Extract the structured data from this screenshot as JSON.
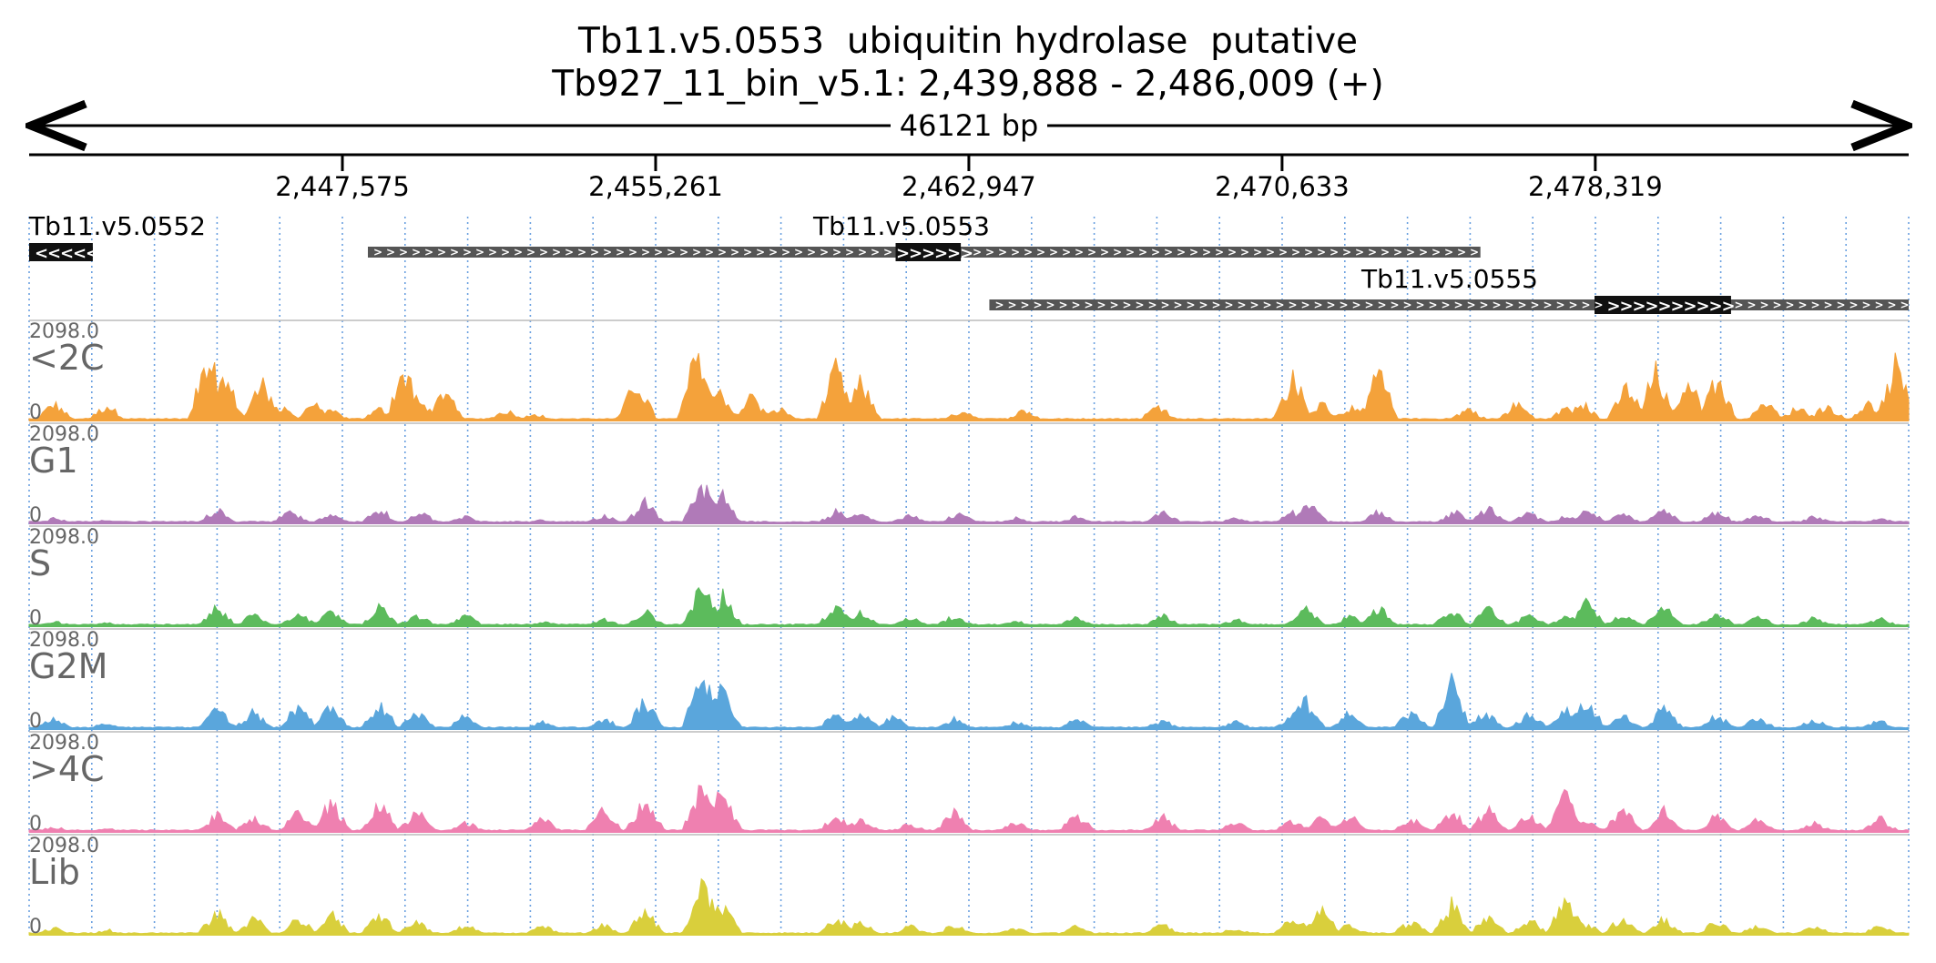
{
  "header": {
    "title_line1": "Tb11.v5.0553  ubiquitin hydrolase  putative",
    "title_line2": "Tb927_11_bin_v5.1: 2,439,888 - 2,486,009 (+)"
  },
  "chart_data": {
    "type": "area",
    "region": {
      "start": 2439888,
      "end": 2486009,
      "strand": "+"
    },
    "span_label": "46121 bp",
    "ticks": [
      2447575,
      2455261,
      2462947,
      2470633,
      2478319
    ],
    "tick_labels": [
      "2,447,575",
      "2,455,261",
      "2,462,947",
      "2,470,633",
      "2,478,319"
    ],
    "genes": [
      {
        "name": "Tb11.v5.0552",
        "strand": "-",
        "utr_start": 2439888,
        "utr_end": 2441450,
        "cds_start": 2439888,
        "cds_end": 2441450
      },
      {
        "name": "Tb11.v5.0553",
        "strand": "+",
        "utr_start": 2448200,
        "utr_end": 2475500,
        "cds_start": 2461150,
        "cds_end": 2462750
      },
      {
        "name": "Tb11.v5.0555",
        "strand": "+",
        "utr_start": 2463450,
        "utr_end": 2486009,
        "cds_start": 2478300,
        "cds_end": 2481650
      }
    ],
    "y_max_label": "2098.0",
    "y_min_label": "0",
    "ylim": [
      0,
      2098.0
    ],
    "tracks": [
      {
        "name": "<2C",
        "color": "#f4a23b",
        "peaks": [
          [
            2440500,
            500
          ],
          [
            2441800,
            450
          ],
          [
            2444300,
            2050
          ],
          [
            2444700,
            1200
          ],
          [
            2445600,
            1100
          ],
          [
            2446100,
            350
          ],
          [
            2446900,
            550
          ],
          [
            2447300,
            300
          ],
          [
            2448500,
            350
          ],
          [
            2449100,
            1400
          ],
          [
            2449500,
            500
          ],
          [
            2450100,
            950
          ],
          [
            2451600,
            300
          ],
          [
            2452300,
            200
          ],
          [
            2454800,
            1150
          ],
          [
            2456300,
            2050
          ],
          [
            2456800,
            1000
          ],
          [
            2457600,
            700
          ],
          [
            2458300,
            350
          ],
          [
            2459700,
            1500
          ],
          [
            2460300,
            1100
          ],
          [
            2462800,
            300
          ],
          [
            2464300,
            300
          ],
          [
            2467600,
            450
          ],
          [
            2470900,
            1300
          ],
          [
            2471600,
            500
          ],
          [
            2472300,
            400
          ],
          [
            2473000,
            1400
          ],
          [
            2475200,
            350
          ],
          [
            2476400,
            500
          ],
          [
            2477600,
            350
          ],
          [
            2478000,
            500
          ],
          [
            2479100,
            1000
          ],
          [
            2479800,
            1400
          ],
          [
            2480600,
            1150
          ],
          [
            2481300,
            1300
          ],
          [
            2482500,
            500
          ],
          [
            2483300,
            400
          ],
          [
            2484000,
            450
          ],
          [
            2485000,
            500
          ],
          [
            2485700,
            1600
          ]
        ]
      },
      {
        "name": "G1",
        "color": "#b07ab8",
        "peaks": [
          [
            2440500,
            150
          ],
          [
            2441800,
            100
          ],
          [
            2444500,
            400
          ],
          [
            2446300,
            350
          ],
          [
            2447300,
            250
          ],
          [
            2448500,
            400
          ],
          [
            2449500,
            300
          ],
          [
            2450600,
            200
          ],
          [
            2452500,
            100
          ],
          [
            2454000,
            250
          ],
          [
            2455000,
            600
          ],
          [
            2456400,
            1200
          ],
          [
            2456900,
            800
          ],
          [
            2459700,
            350
          ],
          [
            2460300,
            300
          ],
          [
            2461500,
            250
          ],
          [
            2462700,
            300
          ],
          [
            2464100,
            150
          ],
          [
            2465600,
            200
          ],
          [
            2467700,
            350
          ],
          [
            2469500,
            150
          ],
          [
            2470900,
            300
          ],
          [
            2471300,
            600
          ],
          [
            2473000,
            350
          ],
          [
            2474900,
            350
          ],
          [
            2475700,
            450
          ],
          [
            2476700,
            300
          ],
          [
            2477600,
            200
          ],
          [
            2478100,
            450
          ],
          [
            2479000,
            300
          ],
          [
            2480000,
            400
          ],
          [
            2481300,
            350
          ],
          [
            2482300,
            250
          ],
          [
            2483700,
            200
          ],
          [
            2485300,
            150
          ]
        ]
      },
      {
        "name": "S",
        "color": "#5cbb5c",
        "peaks": [
          [
            2440500,
            150
          ],
          [
            2441800,
            100
          ],
          [
            2444500,
            550
          ],
          [
            2445400,
            350
          ],
          [
            2446500,
            400
          ],
          [
            2447300,
            450
          ],
          [
            2448500,
            550
          ],
          [
            2449400,
            350
          ],
          [
            2450600,
            300
          ],
          [
            2452500,
            150
          ],
          [
            2454000,
            200
          ],
          [
            2455000,
            450
          ],
          [
            2456400,
            1200
          ],
          [
            2456900,
            900
          ],
          [
            2459700,
            600
          ],
          [
            2460300,
            450
          ],
          [
            2461500,
            250
          ],
          [
            2462600,
            300
          ],
          [
            2464100,
            150
          ],
          [
            2465600,
            250
          ],
          [
            2467700,
            300
          ],
          [
            2469500,
            200
          ],
          [
            2471200,
            550
          ],
          [
            2472300,
            300
          ],
          [
            2473000,
            550
          ],
          [
            2474800,
            450
          ],
          [
            2475700,
            500
          ],
          [
            2476700,
            350
          ],
          [
            2477600,
            250
          ],
          [
            2478100,
            700
          ],
          [
            2479000,
            400
          ],
          [
            2480000,
            600
          ],
          [
            2481300,
            450
          ],
          [
            2482300,
            300
          ],
          [
            2483700,
            250
          ],
          [
            2485300,
            250
          ]
        ]
      },
      {
        "name": "G2M",
        "color": "#5aa6dc",
        "peaks": [
          [
            2440500,
            300
          ],
          [
            2441800,
            200
          ],
          [
            2444500,
            600
          ],
          [
            2445400,
            500
          ],
          [
            2446500,
            700
          ],
          [
            2447300,
            650
          ],
          [
            2448500,
            700
          ],
          [
            2449400,
            500
          ],
          [
            2450600,
            400
          ],
          [
            2452500,
            200
          ],
          [
            2454000,
            300
          ],
          [
            2455000,
            800
          ],
          [
            2456400,
            2000
          ],
          [
            2456900,
            1300
          ],
          [
            2459700,
            450
          ],
          [
            2460300,
            500
          ],
          [
            2461100,
            350
          ],
          [
            2462600,
            300
          ],
          [
            2464100,
            200
          ],
          [
            2465600,
            300
          ],
          [
            2467700,
            250
          ],
          [
            2469500,
            200
          ],
          [
            2470900,
            400
          ],
          [
            2471200,
            900
          ],
          [
            2472300,
            500
          ],
          [
            2473800,
            500
          ],
          [
            2474800,
            1300
          ],
          [
            2475600,
            500
          ],
          [
            2476700,
            450
          ],
          [
            2477600,
            700
          ],
          [
            2478100,
            900
          ],
          [
            2479000,
            400
          ],
          [
            2480000,
            600
          ],
          [
            2481300,
            400
          ],
          [
            2482300,
            350
          ],
          [
            2483700,
            300
          ],
          [
            2485300,
            250
          ]
        ]
      },
      {
        "name": ">4C",
        "color": "#ef80b0",
        "peaks": [
          [
            2440500,
            150
          ],
          [
            2441800,
            100
          ],
          [
            2444500,
            500
          ],
          [
            2445400,
            450
          ],
          [
            2446500,
            700
          ],
          [
            2447300,
            900
          ],
          [
            2448500,
            800
          ],
          [
            2449400,
            600
          ],
          [
            2450600,
            300
          ],
          [
            2452500,
            400
          ],
          [
            2454000,
            650
          ],
          [
            2455000,
            1000
          ],
          [
            2456400,
            1500
          ],
          [
            2456900,
            1200
          ],
          [
            2459700,
            450
          ],
          [
            2460300,
            400
          ],
          [
            2461500,
            250
          ],
          [
            2462600,
            600
          ],
          [
            2464100,
            300
          ],
          [
            2465600,
            500
          ],
          [
            2467700,
            450
          ],
          [
            2469500,
            300
          ],
          [
            2470900,
            350
          ],
          [
            2471600,
            450
          ],
          [
            2472300,
            500
          ],
          [
            2473800,
            400
          ],
          [
            2474800,
            600
          ],
          [
            2475700,
            700
          ],
          [
            2476700,
            500
          ],
          [
            2477600,
            1100
          ],
          [
            2478100,
            300
          ],
          [
            2479000,
            700
          ],
          [
            2480000,
            600
          ],
          [
            2481300,
            500
          ],
          [
            2482300,
            350
          ],
          [
            2483700,
            250
          ],
          [
            2485300,
            400
          ]
        ]
      },
      {
        "name": "Lib",
        "color": "#d9cf3c",
        "peaks": [
          [
            2440500,
            200
          ],
          [
            2441800,
            150
          ],
          [
            2444500,
            650
          ],
          [
            2445400,
            500
          ],
          [
            2446500,
            500
          ],
          [
            2447300,
            600
          ],
          [
            2448500,
            600
          ],
          [
            2449400,
            400
          ],
          [
            2450600,
            300
          ],
          [
            2452500,
            250
          ],
          [
            2454000,
            300
          ],
          [
            2455000,
            700
          ],
          [
            2456400,
            1650
          ],
          [
            2456900,
            900
          ],
          [
            2459700,
            500
          ],
          [
            2460300,
            400
          ],
          [
            2461500,
            250
          ],
          [
            2462600,
            300
          ],
          [
            2464100,
            200
          ],
          [
            2465600,
            250
          ],
          [
            2467700,
            300
          ],
          [
            2469500,
            200
          ],
          [
            2470900,
            550
          ],
          [
            2471600,
            800
          ],
          [
            2472300,
            300
          ],
          [
            2473800,
            400
          ],
          [
            2474800,
            900
          ],
          [
            2475700,
            600
          ],
          [
            2476700,
            500
          ],
          [
            2477600,
            1050
          ],
          [
            2478100,
            300
          ],
          [
            2479000,
            550
          ],
          [
            2480000,
            500
          ],
          [
            2481300,
            400
          ],
          [
            2482300,
            300
          ],
          [
            2483700,
            250
          ],
          [
            2485300,
            250
          ]
        ]
      }
    ],
    "grid": true,
    "grid_color": "#6aa0e0"
  }
}
